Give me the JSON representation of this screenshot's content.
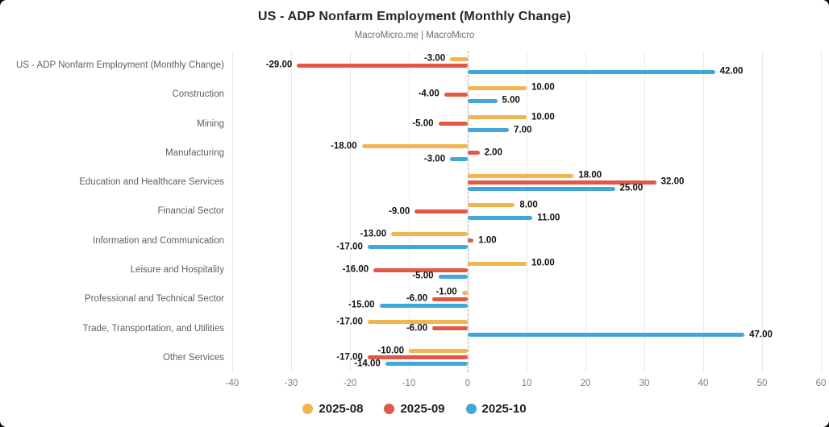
{
  "chart_data": {
    "type": "bar",
    "orientation": "horizontal",
    "title": "US - ADP Nonfarm Employment (Monthly Change)",
    "subtitle": "MacroMicro.me | MacroMicro",
    "categories": [
      "US - ADP Nonfarm Employment (Monthly Change)",
      "Construction",
      "Mining",
      "Manufacturing",
      "Education and Healthcare Services",
      "Financial Sector",
      "Information and Communication",
      "Leisure and Hospitality",
      "Professional and Technical Sector",
      "Trade, Transportation, and Utilities",
      "Other Services"
    ],
    "series": [
      {
        "name": "2025-08",
        "color": "#F0B54C",
        "values": [
          -3,
          10,
          10,
          -18,
          18,
          8,
          -13,
          10,
          -1,
          -17,
          -10
        ]
      },
      {
        "name": "2025-09",
        "color": "#E25845",
        "values": [
          -29,
          -4,
          -5,
          2,
          32,
          -9,
          1,
          -16,
          -6,
          -6,
          -17
        ]
      },
      {
        "name": "2025-10",
        "color": "#41A7D9",
        "values": [
          42,
          5,
          7,
          -3,
          25,
          11,
          -17,
          -5,
          -15,
          47,
          -14
        ]
      }
    ],
    "xlim": [
      -40,
      60
    ],
    "xticks": [
      -40,
      -30,
      -20,
      -10,
      0,
      10,
      20,
      30,
      40,
      50,
      60
    ],
    "value_label_decimals": 2,
    "grid": "vertical",
    "zero_line": "dashed",
    "legend_position": "bottom"
  },
  "colors": {
    "page_background": "#000000",
    "card_background": "#ffffff",
    "gridline": "#e9e9e9",
    "zero_line": "#a9a9a9",
    "title": "#262626",
    "subtitle": "#6f6f6f",
    "category_label": "#5f5f5f",
    "tick_label": "#7d7d7d",
    "value_label": "#111111"
  }
}
